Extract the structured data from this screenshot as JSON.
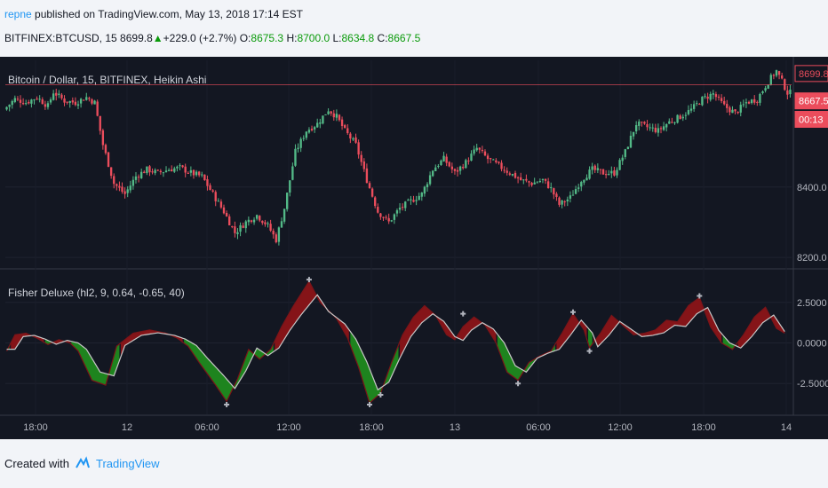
{
  "header": {
    "author": "repne",
    "published_text": " published on TradingView.com, May 13, 2018 17:14 EST",
    "symbol": "BITFINEX:BTCUSD, 15",
    "last": "8699.8",
    "change": "+229.0 (+2.7%)",
    "o_label": "O:",
    "o_val": "8675.3",
    "h_label": "H:",
    "h_val": "8700.0",
    "l_label": "L:",
    "l_val": "8634.8",
    "c_label": "C:",
    "c_val": "8667.5"
  },
  "footer": {
    "created_with": "Created with",
    "brand": "TradingView"
  },
  "colors": {
    "up": "#53b987",
    "down": "#eb4d5c",
    "bg": "#131722",
    "fisher_red": "#8b1418",
    "fisher_green": "#1f8a1f"
  },
  "chart_data": [
    {
      "type": "candlestick",
      "title": "Bitcoin / Dollar, 15, BITFINEX, Heikin Ashi",
      "y_ticks": [
        "8400.0",
        "8200.0"
      ],
      "y_tick_values": [
        8400,
        8200
      ],
      "ylim": [
        8175,
        8760
      ],
      "price_tags": [
        {
          "text": "8699.8",
          "value": 8699.8
        },
        {
          "text": "8667.5",
          "value": 8667.5
        },
        {
          "text": "00:13",
          "value": 8615
        }
      ],
      "x_ticks": [
        "18:00",
        "12",
        "06:00",
        "12:00",
        "18:00",
        "13",
        "06:00",
        "12:00",
        "18:00",
        "14"
      ],
      "price_path": [
        [
          0,
          8620
        ],
        [
          4,
          8650
        ],
        [
          8,
          8640
        ],
        [
          12,
          8655
        ],
        [
          16,
          8630
        ],
        [
          18,
          8670
        ],
        [
          22,
          8645
        ],
        [
          26,
          8640
        ],
        [
          30,
          8655
        ],
        [
          33,
          8640
        ],
        [
          36,
          8520
        ],
        [
          40,
          8410
        ],
        [
          44,
          8380
        ],
        [
          48,
          8430
        ],
        [
          52,
          8450
        ],
        [
          56,
          8440
        ],
        [
          60,
          8450
        ],
        [
          64,
          8455
        ],
        [
          68,
          8440
        ],
        [
          72,
          8430
        ],
        [
          76,
          8380
        ],
        [
          80,
          8330
        ],
        [
          84,
          8270
        ],
        [
          88,
          8300
        ],
        [
          92,
          8320
        ],
        [
          96,
          8290
        ],
        [
          99,
          8250
        ],
        [
          102,
          8340
        ],
        [
          106,
          8500
        ],
        [
          110,
          8560
        ],
        [
          114,
          8580
        ],
        [
          118,
          8620
        ],
        [
          121,
          8600
        ],
        [
          124,
          8560
        ],
        [
          128,
          8520
        ],
        [
          132,
          8420
        ],
        [
          136,
          8330
        ],
        [
          140,
          8300
        ],
        [
          144,
          8340
        ],
        [
          148,
          8360
        ],
        [
          152,
          8380
        ],
        [
          156,
          8450
        ],
        [
          160,
          8480
        ],
        [
          164,
          8440
        ],
        [
          168,
          8470
        ],
        [
          172,
          8510
        ],
        [
          176,
          8480
        ],
        [
          180,
          8460
        ],
        [
          184,
          8440
        ],
        [
          188,
          8420
        ],
        [
          192,
          8410
        ],
        [
          196,
          8420
        ],
        [
          199,
          8395
        ],
        [
          202,
          8350
        ],
        [
          206,
          8370
        ],
        [
          210,
          8420
        ],
        [
          214,
          8450
        ],
        [
          218,
          8440
        ],
        [
          222,
          8440
        ],
        [
          226,
          8500
        ],
        [
          230,
          8580
        ],
        [
          234,
          8570
        ],
        [
          238,
          8560
        ],
        [
          242,
          8585
        ],
        [
          246,
          8600
        ],
        [
          250,
          8620
        ],
        [
          254,
          8650
        ],
        [
          258,
          8665
        ],
        [
          262,
          8630
        ],
        [
          266,
          8610
        ],
        [
          270,
          8640
        ],
        [
          274,
          8650
        ],
        [
          278,
          8700
        ],
        [
          281,
          8730
        ],
        [
          283,
          8700
        ],
        [
          285,
          8668
        ]
      ],
      "n_bars": 286
    },
    {
      "type": "area",
      "title": "Fisher Deluxe (hl2, 9, 0.64, -0.65, 40)",
      "y_ticks": [
        "2.5000",
        "0.0000",
        "-2.5000"
      ],
      "y_tick_values": [
        2.5,
        0,
        -2.5
      ],
      "ylim": [
        -4.4,
        4.4
      ],
      "fisher_path": [
        [
          0,
          -0.5
        ],
        [
          3,
          0.5
        ],
        [
          7,
          0.6
        ],
        [
          11,
          0.3
        ],
        [
          15,
          -0.1
        ],
        [
          19,
          0.2
        ],
        [
          23,
          0.0
        ],
        [
          26,
          -0.5
        ],
        [
          31,
          -2.3
        ],
        [
          36,
          -2.6
        ],
        [
          40,
          -0.2
        ],
        [
          46,
          0.6
        ],
        [
          52,
          0.8
        ],
        [
          58,
          0.6
        ],
        [
          62,
          0.3
        ],
        [
          66,
          -0.2
        ],
        [
          70,
          -1.2
        ],
        [
          76,
          -2.6
        ],
        [
          80,
          -3.6
        ],
        [
          84,
          -2.2
        ],
        [
          88,
          -0.4
        ],
        [
          92,
          -1.0
        ],
        [
          96,
          -0.4
        ],
        [
          100,
          1.0
        ],
        [
          104,
          2.2
        ],
        [
          110,
          3.8
        ],
        [
          114,
          2.5
        ],
        [
          120,
          1.5
        ],
        [
          124,
          0.3
        ],
        [
          128,
          -1.5
        ],
        [
          132,
          -3.7
        ],
        [
          136,
          -3.1
        ],
        [
          140,
          -1.2
        ],
        [
          144,
          0.5
        ],
        [
          148,
          1.6
        ],
        [
          152,
          2.3
        ],
        [
          156,
          1.7
        ],
        [
          160,
          0.5
        ],
        [
          163,
          0.2
        ],
        [
          166,
          1.0
        ],
        [
          170,
          1.6
        ],
        [
          174,
          1.1
        ],
        [
          178,
          0.0
        ],
        [
          182,
          -1.8
        ],
        [
          186,
          -2.3
        ],
        [
          190,
          -1.2
        ],
        [
          194,
          -0.8
        ],
        [
          198,
          -0.5
        ],
        [
          202,
          0.6
        ],
        [
          206,
          1.8
        ],
        [
          210,
          0.8
        ],
        [
          212,
          -0.3
        ],
        [
          216,
          0.6
        ],
        [
          220,
          1.7
        ],
        [
          224,
          1.1
        ],
        [
          228,
          0.5
        ],
        [
          232,
          0.6
        ],
        [
          236,
          0.8
        ],
        [
          240,
          1.4
        ],
        [
          244,
          1.3
        ],
        [
          248,
          2.3
        ],
        [
          252,
          2.8
        ],
        [
          256,
          1.0
        ],
        [
          260,
          0.0
        ],
        [
          264,
          -0.4
        ],
        [
          268,
          0.5
        ],
        [
          272,
          1.6
        ],
        [
          276,
          2.2
        ],
        [
          280,
          0.9
        ],
        [
          283,
          0.6
        ]
      ],
      "trigger_shift": 3,
      "markers": [
        [
          110,
          3.9
        ],
        [
          80,
          -3.8
        ],
        [
          132,
          -3.8
        ],
        [
          136,
          -3.2
        ],
        [
          166,
          1.8
        ],
        [
          186,
          -2.5
        ],
        [
          206,
          1.9
        ],
        [
          212,
          -0.5
        ],
        [
          252,
          2.9
        ]
      ]
    }
  ]
}
